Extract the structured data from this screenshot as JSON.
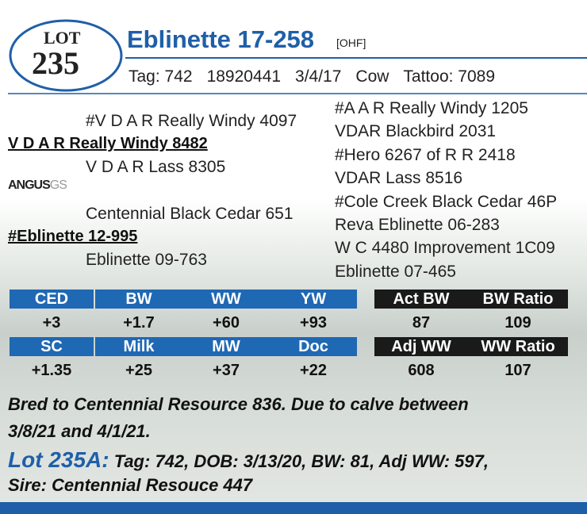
{
  "header": {
    "lot_label": "LOT",
    "lot_number": "235",
    "name": "Eblinette 17-258",
    "suffix": "[OHF]",
    "info": [
      "Tag: 742",
      "18920441",
      "3/4/17",
      "Cow",
      "Tattoo: 7089"
    ]
  },
  "pedigree": {
    "sire_sire": "#V D A R Really Windy 4097",
    "sire": "V D A R Really Windy 8482",
    "sire_dam": "V D A R Lass 8305",
    "dam_sire": "Centennial Black Cedar 651",
    "dam": "#Eblinette 12-995",
    "dam_dam": "Eblinette 09-763",
    "right": [
      "#A A R Really Windy 1205",
      "VDAR Blackbird 2031",
      "#Hero 6267 of R R 2418",
      "VDAR Lass 8516",
      "#Cole Creek Black Cedar 46P",
      "Reva Eblinette 06-283",
      "W C 4480 Improvement 1C09",
      "Eblinette 07-465"
    ]
  },
  "logo": {
    "brand": "ANGUS",
    "suffix": "GS"
  },
  "epds": {
    "rows": [
      {
        "headers": [
          "CED",
          "BW",
          "WW",
          "YW"
        ],
        "values": [
          "+3",
          "+1.7",
          "+60",
          "+93"
        ],
        "extra_headers": [
          "Act BW",
          "BW Ratio"
        ],
        "extra_values": [
          "87",
          "109"
        ]
      },
      {
        "headers": [
          "SC",
          "Milk",
          "MW",
          "Doc"
        ],
        "values": [
          "+1.35",
          "+25",
          "+37",
          "+22"
        ],
        "extra_headers": [
          "Adj WW",
          "WW Ratio"
        ],
        "extra_values": [
          "608",
          "107"
        ]
      }
    ]
  },
  "notes": {
    "bred": "Bred to Centennial Resource 836. Due to calve between",
    "bred2": "3/8/21 and 4/1/21.",
    "calf_lot": "Lot 235A:",
    "calf_info": "Tag: 742, DOB: 3/13/20, BW: 81, Adj WW: 597,",
    "calf_sire": "Sire: Centennial Resouce 447"
  }
}
